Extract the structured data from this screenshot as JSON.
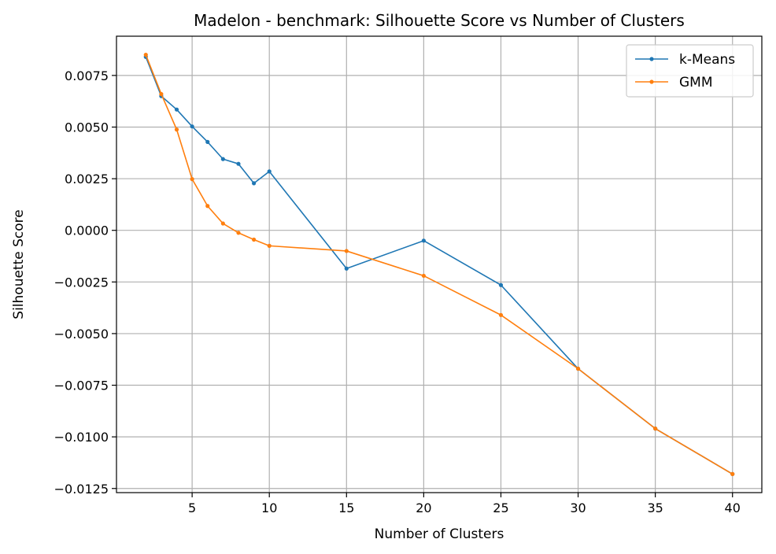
{
  "chart_data": {
    "type": "line",
    "title": "Madelon - benchmark: Silhouette Score vs Number of Clusters",
    "xlabel": "Number of Clusters",
    "ylabel": "Silhouette Score",
    "xlim": [
      0.1,
      41.9
    ],
    "ylim": [
      -0.0127,
      0.0094
    ],
    "xticks": [
      5,
      10,
      15,
      20,
      25,
      30,
      35,
      40
    ],
    "xtick_labels": [
      "5",
      "10",
      "15",
      "20",
      "25",
      "30",
      "35",
      "40"
    ],
    "yticks": [
      -0.0125,
      -0.01,
      -0.0075,
      -0.005,
      -0.0025,
      0.0,
      0.0025,
      0.005,
      0.0075
    ],
    "ytick_labels": [
      "−0.0125",
      "−0.0100",
      "−0.0075",
      "−0.0050",
      "−0.0025",
      "0.0000",
      "0.0025",
      "0.0050",
      "0.0075"
    ],
    "grid": true,
    "legend_position": "top-right",
    "x": [
      2,
      3,
      4,
      5,
      6,
      7,
      8,
      9,
      10,
      15,
      20,
      25,
      30,
      35,
      40
    ],
    "series": [
      {
        "name": "k-Means",
        "color": "#1f77b4",
        "values": [
          0.0084,
          0.0065,
          0.00585,
          0.00503,
          0.00428,
          0.00345,
          0.00322,
          0.00228,
          0.00285,
          -0.00185,
          -0.0005,
          -0.00265,
          -0.0067,
          -0.0096,
          -0.0118
        ]
      },
      {
        "name": "GMM",
        "color": "#ff7f0e",
        "values": [
          0.0085,
          0.0066,
          0.00488,
          0.00248,
          0.00118,
          0.00033,
          -0.00012,
          -0.00045,
          -0.00075,
          -0.001,
          -0.0022,
          -0.0041,
          -0.0067,
          -0.0096,
          -0.0118
        ]
      }
    ]
  }
}
